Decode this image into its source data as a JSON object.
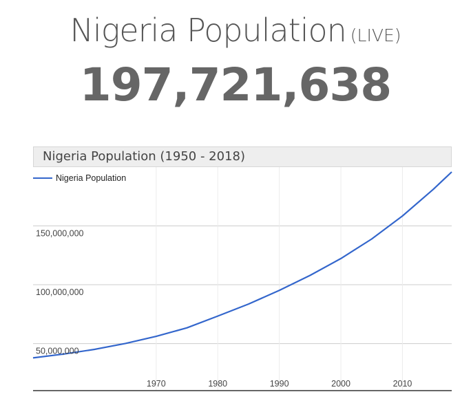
{
  "page": {
    "title": "Nigeria Population",
    "title_badge": "(LIVE)",
    "live_counter": "197,721,638"
  },
  "chart_data": {
    "type": "line",
    "title": "Nigeria Population (1950 - 2018)",
    "xlabel": "",
    "ylabel": "",
    "legend": "top-left",
    "grid": true,
    "xlim": [
      1950,
      2018
    ],
    "ylim": [
      10000000,
      200000000
    ],
    "x_ticks": [
      1970,
      1980,
      1990,
      2000,
      2010
    ],
    "x_tick_labels": [
      "1970",
      "1980",
      "1990",
      "2000",
      "2010"
    ],
    "y_ticks": [
      50000000,
      100000000,
      150000000
    ],
    "y_tick_labels": [
      "50,000,000",
      "100,000,000",
      "150,000,000"
    ],
    "colors": {
      "line": "#3366cc",
      "grid": "#cccccc",
      "axis": "#333333"
    },
    "series": [
      {
        "name": "Nigeria Population",
        "x": [
          1950,
          1955,
          1960,
          1965,
          1970,
          1975,
          1980,
          1985,
          1990,
          1995,
          2000,
          2005,
          2010,
          2015,
          2018
        ],
        "values": [
          37800000,
          41100000,
          45100000,
          50100000,
          56100000,
          63400000,
          73400000,
          83600000,
          95200000,
          108000000,
          122300000,
          138900000,
          158500000,
          181100000,
          195900000
        ]
      }
    ]
  }
}
